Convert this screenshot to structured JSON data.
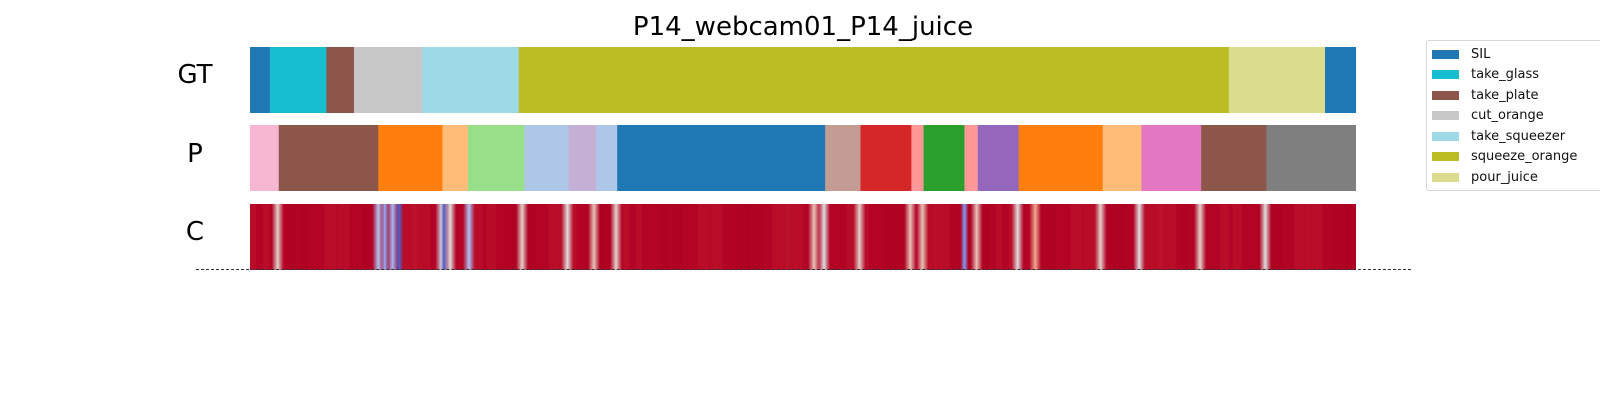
{
  "chart_data": {
    "type": "segmentation-timeline",
    "title": "P14_webcam01_P14_juice",
    "rows": [
      {
        "label": "GT",
        "segments": [
          {
            "start": 0.0,
            "end": 1.8,
            "color": "#1f77b4"
          },
          {
            "start": 1.8,
            "end": 6.9,
            "color": "#17becf"
          },
          {
            "start": 6.9,
            "end": 9.4,
            "color": "#8c564b"
          },
          {
            "start": 9.4,
            "end": 15.6,
            "color": "#c7c7c7"
          },
          {
            "start": 15.6,
            "end": 24.3,
            "color": "#9edae5"
          },
          {
            "start": 24.3,
            "end": 88.5,
            "color": "#bcbd22"
          },
          {
            "start": 88.5,
            "end": 97.2,
            "color": "#dbdb8d"
          },
          {
            "start": 97.2,
            "end": 100.0,
            "color": "#1f77b4"
          }
        ]
      },
      {
        "label": "P",
        "segments": [
          {
            "start": 0.0,
            "end": 2.6,
            "color": "#f7b6d2"
          },
          {
            "start": 2.6,
            "end": 11.6,
            "color": "#8c564b"
          },
          {
            "start": 11.6,
            "end": 17.4,
            "color": "#ff7f0e"
          },
          {
            "start": 17.4,
            "end": 19.7,
            "color": "#ffbb78"
          },
          {
            "start": 19.7,
            "end": 24.8,
            "color": "#98df8a"
          },
          {
            "start": 24.8,
            "end": 28.8,
            "color": "#aec7e8"
          },
          {
            "start": 28.8,
            "end": 31.3,
            "color": "#c5b0d5"
          },
          {
            "start": 31.3,
            "end": 33.2,
            "color": "#aec7e8"
          },
          {
            "start": 33.2,
            "end": 52.0,
            "color": "#1f77b4"
          },
          {
            "start": 52.0,
            "end": 55.2,
            "color": "#c49c94"
          },
          {
            "start": 55.2,
            "end": 59.8,
            "color": "#d62728"
          },
          {
            "start": 59.8,
            "end": 60.9,
            "color": "#ff9896"
          },
          {
            "start": 60.9,
            "end": 64.6,
            "color": "#2ca02c"
          },
          {
            "start": 64.6,
            "end": 65.8,
            "color": "#ff9896"
          },
          {
            "start": 65.8,
            "end": 69.5,
            "color": "#9467bd"
          },
          {
            "start": 69.5,
            "end": 77.1,
            "color": "#ff7f0e"
          },
          {
            "start": 77.1,
            "end": 80.6,
            "color": "#ffbb78"
          },
          {
            "start": 80.6,
            "end": 86.0,
            "color": "#e377c2"
          },
          {
            "start": 86.0,
            "end": 91.9,
            "color": "#8c564b"
          },
          {
            "start": 91.9,
            "end": 100.0,
            "color": "#7f7f7f"
          }
        ]
      },
      {
        "label": "C",
        "base_color": "#b40426",
        "colormap": "coolwarm",
        "low_confidence_marks": [
          {
            "pos": 2.5,
            "level": 0.55
          },
          {
            "pos": 11.6,
            "level": 0.35
          },
          {
            "pos": 12.2,
            "level": 0.25
          },
          {
            "pos": 12.9,
            "level": 0.3
          },
          {
            "pos": 13.5,
            "level": 0.05
          },
          {
            "pos": 17.3,
            "level": 0.45
          },
          {
            "pos": 17.6,
            "level": 0.05
          },
          {
            "pos": 18.1,
            "level": 0.5
          },
          {
            "pos": 19.8,
            "level": 0.35
          },
          {
            "pos": 24.6,
            "level": 0.55
          },
          {
            "pos": 28.7,
            "level": 0.5
          },
          {
            "pos": 31.1,
            "level": 0.6
          },
          {
            "pos": 33.1,
            "level": 0.55
          },
          {
            "pos": 51.0,
            "level": 0.6
          },
          {
            "pos": 51.9,
            "level": 0.5
          },
          {
            "pos": 55.1,
            "level": 0.55
          },
          {
            "pos": 59.7,
            "level": 0.6
          },
          {
            "pos": 60.8,
            "level": 0.6
          },
          {
            "pos": 64.6,
            "level": 0.2
          },
          {
            "pos": 65.7,
            "level": 0.6
          },
          {
            "pos": 69.4,
            "level": 0.5
          },
          {
            "pos": 71.0,
            "level": 0.7
          },
          {
            "pos": 76.9,
            "level": 0.55
          },
          {
            "pos": 80.4,
            "level": 0.5
          },
          {
            "pos": 85.9,
            "level": 0.55
          },
          {
            "pos": 91.8,
            "level": 0.5
          }
        ]
      }
    ],
    "legend": [
      {
        "label": "SIL",
        "color": "#1f77b4"
      },
      {
        "label": "take_glass",
        "color": "#17becf"
      },
      {
        "label": "take_plate",
        "color": "#8c564b"
      },
      {
        "label": "cut_orange",
        "color": "#c7c7c7"
      },
      {
        "label": "take_squeezer",
        "color": "#9edae5"
      },
      {
        "label": "squeeze_orange",
        "color": "#bcbd22"
      },
      {
        "label": "pour_juice",
        "color": "#dbdb8d"
      }
    ],
    "legend_placement": "right",
    "baseline_style": "dashed"
  }
}
